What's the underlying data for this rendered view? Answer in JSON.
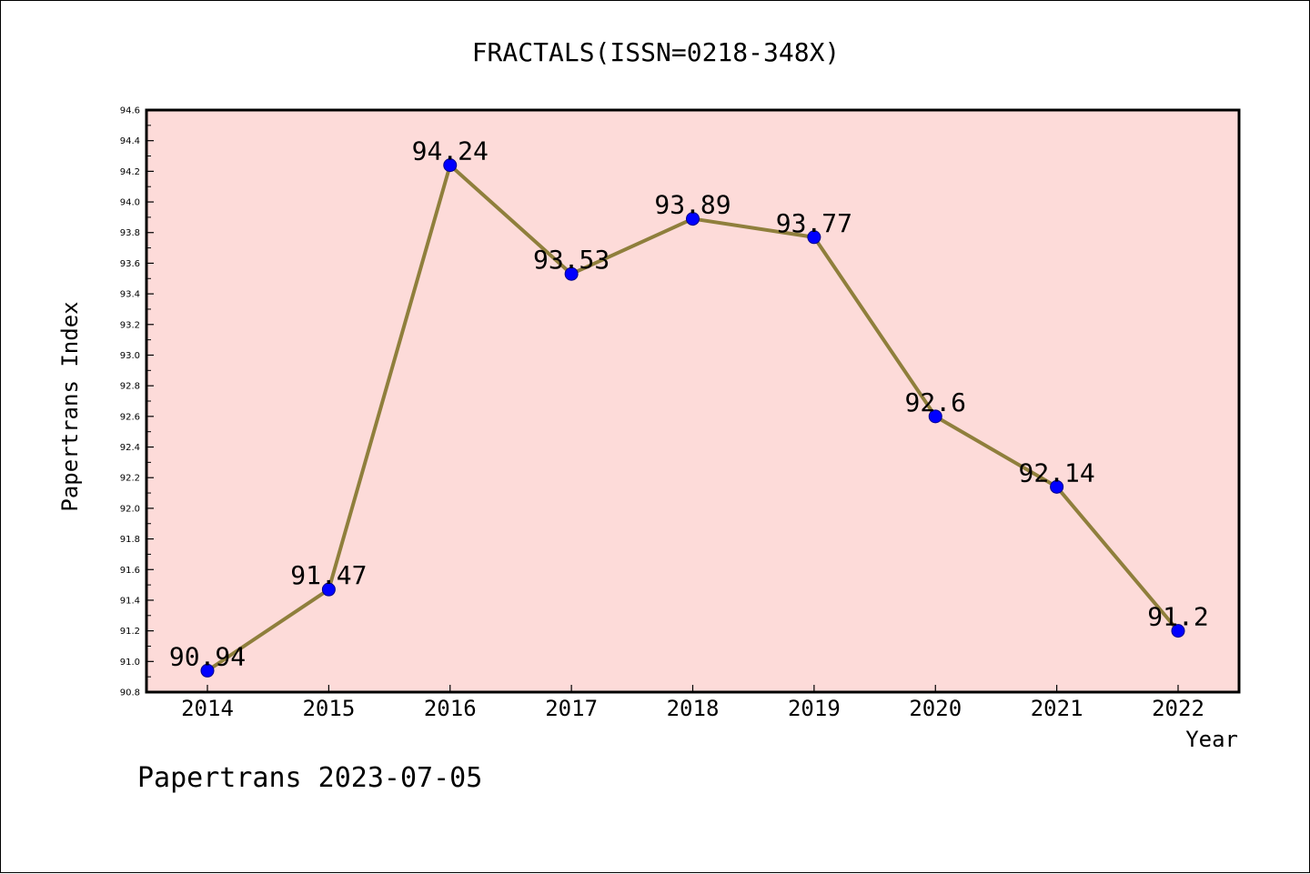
{
  "chart_data": {
    "type": "line",
    "title": "FRACTALS(ISSN=0218-348X)",
    "xlabel": "Year",
    "ylabel": "Papertrans Index",
    "footer": "Papertrans 2023-07-05",
    "categories": [
      "2014",
      "2015",
      "2016",
      "2017",
      "2018",
      "2019",
      "2020",
      "2021",
      "2022"
    ],
    "values": [
      90.94,
      91.47,
      94.24,
      93.53,
      93.89,
      93.77,
      92.6,
      92.14,
      91.2
    ],
    "value_labels": [
      "90.94",
      "91.47",
      "94.24",
      "93.53",
      "93.89",
      "93.77",
      "92.6",
      "92.14",
      "91.2"
    ],
    "ylim": [
      90.8,
      94.6
    ],
    "yticks": [
      "90.8",
      "91.0",
      "91.2",
      "91.4",
      "91.6",
      "91.8",
      "92.0",
      "92.2",
      "92.4",
      "92.6",
      "92.8",
      "93.0",
      "93.2",
      "93.4",
      "93.6",
      "93.8",
      "94.0",
      "94.2",
      "94.4",
      "94.6"
    ],
    "grid": false,
    "colors": {
      "plot_background": "#fddbd9",
      "line": "#8f7f3c",
      "marker": "#0000ff",
      "marker_edge": "#00008b"
    }
  }
}
